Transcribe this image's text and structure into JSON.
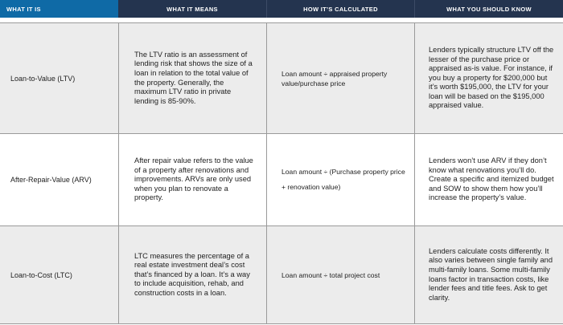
{
  "header": {
    "col1": "WHAT IT IS",
    "col2": "WHAT IT MEANS",
    "col3": "HOW IT’S CALCULATED",
    "col4": "WHAT YOU SHOULD KNOW"
  },
  "rows": [
    {
      "term": "Loan-to-Value (LTV)",
      "meaning": "The LTV ratio is an assessment of lending risk that shows the size of a loan in relation to the total value of the property. Generally, the maximum LTV ratio in private lending is 85-90%.",
      "calculation": "Loan amount ÷ appraised property value/purchase price",
      "know": "Lenders typically structure LTV off the lesser of the purchase price or appraised as-is value. For instance, if you buy a property for $200,000 but it’s worth $195,000, the LTV for your loan will be based on the $195,000 appraised value."
    },
    {
      "term": "After-Repair-Value (ARV)",
      "meaning": "After repair value refers to the value of a property after renovations and improvements. ARVs are only used when you plan to renovate a property.",
      "calculation": "Loan amount ÷ (Purchase property price + renovation value)",
      "know": "Lenders won’t use ARV if they don’t know what renovations you’ll do. Create a specific and itemized budget and SOW to show them how you’ll increase the property’s value."
    },
    {
      "term": "Loan-to-Cost (LTC)",
      "meaning": "LTC measures the percentage of a real estate investment deal’s cost that’s financed by a loan. It’s a way to include acquisition, rehab, and construction costs in a loan.",
      "calculation": "Loan amount ÷ total project cost",
      "know": "Lenders calculate costs differently. It also varies between single family and multi-family loans. Some multi-family loans factor in transaction costs, like lender fees and title fees. Ask to get clarity."
    }
  ]
}
